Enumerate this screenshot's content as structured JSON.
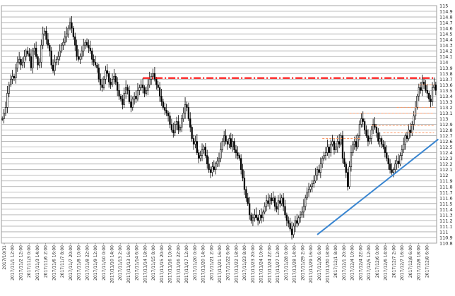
{
  "chart_data": {
    "type": "candlestick",
    "y_axis_side": "right",
    "ylim": [
      110.8,
      115.0
    ],
    "y_ticks": [
      110.8,
      110.9,
      111,
      111.1,
      111.2,
      111.3,
      111.4,
      111.5,
      111.6,
      111.7,
      111.8,
      111.9,
      112,
      112.1,
      112.2,
      112.3,
      112.4,
      112.5,
      112.6,
      112.7,
      112.8,
      112.9,
      113,
      113.1,
      113.2,
      113.3,
      113.4,
      113.5,
      113.6,
      113.7,
      113.8,
      113.9,
      114,
      114.1,
      114.2,
      114.3,
      114.4,
      114.5,
      114.6,
      114.7,
      114.8,
      114.9,
      115
    ],
    "y_tick_labels": [
      "110.8",
      "110.9",
      "111",
      "111.1",
      "111.2",
      "111.3",
      "111.4",
      "111.5",
      "111.6",
      "111.7",
      "111.8",
      "111.9",
      "112",
      "112.1",
      "112.2",
      "112.3",
      "112.4",
      "112.5",
      "112.6",
      "112.7",
      "112.8",
      "112.9",
      "113",
      "113.1",
      "113.2",
      "113.3",
      "113.4",
      "113.5",
      "113.6",
      "113.7",
      "113.8",
      "113.9",
      "114",
      "114.1",
      "114.2",
      "114.3",
      "114.4",
      "114.5",
      "114.6",
      "114.7",
      "114.8",
      "114.9",
      "115"
    ],
    "x_tick_labels": [
      "2017/10/31",
      "2017/11/1 12:00",
      "2017/11/2 12:00",
      "2017/11/3 0:00",
      "2017/11/3 14:00",
      "2017/11/6 2:00",
      "2017/11/6 16:00",
      "2017/11/7 8:00",
      "2017/11/7 20:00",
      "2017/11/8 10:00",
      "2017/11/8 22:00",
      "2017/11/9 12:00",
      "2017/11/10 0:00",
      "2017/11/10 14:00",
      "2017/11/13 2:00",
      "2017/11/13 16:00",
      "2017/11/14 6:00",
      "2017/11/14 18:00",
      "2017/11/15 8:00",
      "2017/11/15 20:00",
      "2017/11/16 10:00",
      "2017/11/16 22:00",
      "2017/11/17 12:00",
      "2017/11/20 0:00",
      "2017/11/20 14:00",
      "2017/11/21 2:00",
      "2017/11/21 16:00",
      "2017/11/22 6:00",
      "2017/11/22 18:00",
      "2017/11/23 8:00",
      "2017/11/23 20:00",
      "2017/11/24 10:00",
      "2017/11/24 22:00",
      "2017/11/27 12:00",
      "2017/11/28 0:00",
      "2017/11/28 14:00",
      "2017/11/29 2:00",
      "2017/11/29 16:00",
      "2017/11/30 6:00",
      "2017/11/30 18:00",
      "2017/12/1 8:00",
      "2017/12/1 20:00",
      "2017/12/4 10:00",
      "2017/12/4 22:00",
      "2017/12/5 12:00",
      "2017/12/6 0:00",
      "2017/12/6 14:00",
      "2017/12/7 2:00",
      "2017/12/7 16:00",
      "2017/12/8 6:00",
      "2017/12/8 18:00",
      "2017/12/8 6:00"
    ],
    "x_label_frequency": "every ~8 bars",
    "close_series": [
      113.0,
      113.1,
      113.2,
      113.45,
      113.6,
      113.7,
      113.75,
      113.72,
      113.9,
      114.0,
      114.05,
      113.95,
      114.0,
      114.1,
      114.2,
      114.15,
      114.1,
      113.9,
      114.2,
      114.25,
      114.1,
      113.95,
      114.0,
      114.3,
      114.5,
      114.55,
      114.4,
      114.3,
      114.2,
      113.95,
      113.85,
      114.0,
      114.05,
      114.1,
      114.2,
      114.3,
      114.35,
      114.45,
      114.5,
      114.6,
      114.7,
      114.6,
      114.45,
      114.3,
      114.1,
      114.05,
      114.1,
      114.2,
      114.3,
      114.35,
      114.3,
      114.25,
      114.2,
      114.05,
      114.0,
      113.95,
      113.9,
      113.7,
      113.6,
      113.55,
      113.7,
      113.85,
      113.8,
      113.65,
      113.6,
      113.7,
      113.75,
      113.65,
      113.5,
      113.4,
      113.35,
      113.25,
      113.45,
      113.55,
      113.5,
      113.3,
      113.2,
      113.35,
      113.4,
      113.35,
      113.5,
      113.55,
      113.6,
      113.55,
      113.45,
      113.5,
      113.6,
      113.7,
      113.75,
      113.8,
      113.7,
      113.6,
      113.55,
      113.4,
      113.3,
      113.2,
      113.15,
      113.1,
      113.05,
      112.9,
      112.8,
      112.75,
      112.9,
      112.95,
      112.8,
      112.85,
      113.0,
      113.1,
      113.25,
      113.2,
      113.0,
      112.85,
      112.65,
      112.55,
      112.6,
      112.4,
      112.3,
      112.35,
      112.45,
      112.5,
      112.35,
      112.2,
      112.1,
      112.05,
      112.15,
      112.1,
      112.2,
      112.25,
      112.3,
      112.45,
      112.6,
      112.7,
      112.6,
      112.55,
      112.65,
      112.5,
      112.6,
      112.45,
      112.4,
      112.35,
      112.3,
      112.1,
      111.95,
      111.75,
      111.6,
      111.5,
      111.3,
      111.2,
      111.25,
      111.3,
      111.25,
      111.2,
      111.3,
      111.25,
      111.35,
      111.45,
      111.55,
      111.5,
      111.6,
      111.55,
      111.6,
      111.45,
      111.4,
      111.55,
      111.5,
      111.6,
      111.45,
      111.3,
      111.2,
      111.15,
      111.05,
      110.95,
      111.1,
      111.2,
      111.15,
      111.25,
      111.3,
      111.35,
      111.45,
      111.6,
      111.7,
      111.75,
      111.8,
      111.85,
      111.9,
      112.0,
      112.1,
      112.05,
      112.2,
      112.3,
      112.35,
      112.4,
      112.5,
      112.4,
      112.55,
      112.6,
      112.45,
      112.5,
      112.6,
      112.55,
      112.7,
      112.3,
      112.2,
      112.05,
      111.8,
      112.15,
      112.4,
      112.55,
      112.6,
      112.5,
      112.7,
      112.9,
      113.0,
      112.95,
      112.8,
      112.7,
      112.6,
      112.65,
      112.8,
      112.9,
      112.85,
      112.75,
      112.6,
      112.65,
      112.55,
      112.5,
      112.4,
      112.3,
      112.2,
      112.1,
      112.05,
      112.1,
      112.2,
      112.25,
      112.2,
      112.35,
      112.45,
      112.55,
      112.7,
      112.65,
      112.8,
      112.75,
      112.9,
      113.05,
      113.2,
      113.4,
      113.55,
      113.5,
      113.65,
      113.6,
      113.5,
      113.45,
      113.35,
      113.3,
      113.55,
      113.6,
      113.5
    ],
    "horizontal_lines": [
      {
        "value": 113.72,
        "style": "dash-dot",
        "color": "#ff0000",
        "x_from_index": 83,
        "x_to_index": 255
      },
      {
        "value": 113.2,
        "style": "dashed",
        "color": "#ff9966",
        "x_from_index": 233,
        "x_to_index": 255
      },
      {
        "value": 113.1,
        "style": "dashed",
        "color": "#ff9966",
        "x_from_index": 205,
        "x_to_index": 255
      },
      {
        "value": 112.88,
        "style": "dashed",
        "color": "#ff9966",
        "x_from_index": 218,
        "x_to_index": 255
      },
      {
        "value": 112.75,
        "style": "dashed",
        "color": "#ff9966",
        "x_from_index": 225,
        "x_to_index": 255
      },
      {
        "value": 112.65,
        "style": "dashed",
        "color": "#ff9966",
        "x_from_index": 189,
        "x_to_index": 212
      },
      {
        "value": 113.6,
        "style": "dashed",
        "color": "#ff9966",
        "x_from_index": 246,
        "x_to_index": 255
      }
    ],
    "trendline": {
      "color": "#3a86d1",
      "from": {
        "index": 186,
        "value": 110.95
      },
      "to": {
        "index": 255,
        "value": 112.6
      }
    },
    "grid": "horizontal",
    "legend": "none",
    "title": "",
    "xlabel": "",
    "ylabel": ""
  }
}
